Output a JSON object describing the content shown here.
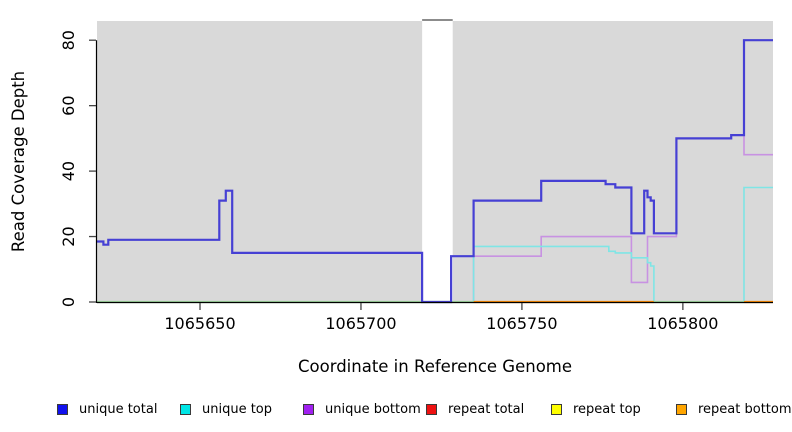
{
  "chart_data": {
    "type": "line",
    "subtype": "step-coverage-plot",
    "title": "",
    "xlabel": "Coordinate in Reference Genome",
    "ylabel": "Read Coverage Depth",
    "x_ticks": [
      1065650,
      1065700,
      1065750,
      1065800
    ],
    "y_ticks": [
      0,
      20,
      40,
      60,
      80
    ],
    "xlim": [
      1065618,
      1065828
    ],
    "ylim": [
      0,
      86
    ],
    "grid": false,
    "plot_bg_color": "#d9d9d9",
    "gap_band": {
      "x1": 1065719,
      "x2": 1065728.5,
      "color": "#ffffff",
      "note": "white no-data band"
    },
    "series": [
      {
        "name": "unique total",
        "color": "#4640d4",
        "width": 2.2,
        "steps": [
          [
            1065618,
            18.5
          ],
          [
            1065620,
            17.5
          ],
          [
            1065621.5,
            19
          ],
          [
            1065656,
            31
          ],
          [
            1065658,
            34
          ],
          [
            1065660,
            15
          ],
          [
            1065719,
            0
          ],
          [
            1065728,
            14
          ],
          [
            1065735,
            31
          ],
          [
            1065756,
            37
          ],
          [
            1065776,
            36
          ],
          [
            1065779,
            35
          ],
          [
            1065784,
            21
          ],
          [
            1065788,
            34
          ],
          [
            1065789,
            32
          ],
          [
            1065790,
            31
          ],
          [
            1065791,
            21
          ],
          [
            1065798,
            50
          ],
          [
            1065815,
            51
          ],
          [
            1065819,
            80
          ]
        ],
        "x_end": 1065828
      },
      {
        "name": "unique top",
        "color": "#7fe5e5",
        "width": 1.6,
        "steps": [
          [
            1065618,
            0
          ],
          [
            1065735,
            17
          ],
          [
            1065777,
            15.5
          ],
          [
            1065779,
            15
          ],
          [
            1065784,
            13.5
          ],
          [
            1065789,
            12
          ],
          [
            1065790,
            11
          ],
          [
            1065791,
            0
          ],
          [
            1065819,
            35
          ]
        ],
        "x_end": 1065828
      },
      {
        "name": "unique bottom",
        "color": "#c892e2",
        "width": 1.6,
        "steps": [
          [
            1065618,
            0
          ],
          [
            1065735,
            14
          ],
          [
            1065756,
            20
          ],
          [
            1065784,
            6
          ],
          [
            1065789,
            20
          ],
          [
            1065798,
            50
          ],
          [
            1065815,
            51
          ],
          [
            1065819,
            45
          ]
        ],
        "x_end": 1065828
      },
      {
        "name": "repeat total",
        "color": "#dd2222",
        "width": 1.4,
        "steps": [
          [
            1065618,
            0
          ]
        ],
        "x_end": 1065828
      },
      {
        "name": "repeat top",
        "color": "#eeee22",
        "width": 1.4,
        "steps": [
          [
            1065618,
            0
          ]
        ],
        "x_end": 1065828
      },
      {
        "name": "repeat bottom",
        "color": "#ff8c00",
        "width": 2,
        "steps": [
          [
            1065618,
            0
          ]
        ],
        "x_end": 1065828
      }
    ],
    "zero_line_segments": [
      {
        "color": "#a3d9a0",
        "x1": 1065618,
        "x2": 1065735
      },
      {
        "color": "#ff8c00",
        "x1": 1065735,
        "x2": 1065791
      },
      {
        "color": "#a3d9a0",
        "x1": 1065791,
        "x2": 1065819
      },
      {
        "color": "#ff8c00",
        "x1": 1065819,
        "x2": 1065828
      }
    ]
  },
  "legend": {
    "items": [
      {
        "label": "unique total",
        "color": "#1111ee"
      },
      {
        "label": "unique top",
        "color": "#00e6e6"
      },
      {
        "label": "unique bottom",
        "color": "#a020f0"
      },
      {
        "label": "repeat total",
        "color": "#ee1111"
      },
      {
        "label": "repeat top",
        "color": "#ffff00"
      },
      {
        "label": "repeat bottom",
        "color": "#ffa500"
      }
    ]
  }
}
